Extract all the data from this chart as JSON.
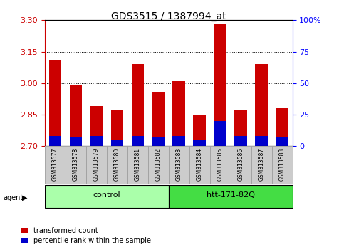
{
  "title": "GDS3515 / 1387994_at",
  "samples": [
    "GSM313577",
    "GSM313578",
    "GSM313579",
    "GSM313580",
    "GSM313581",
    "GSM313582",
    "GSM313583",
    "GSM313584",
    "GSM313585",
    "GSM313586",
    "GSM313587",
    "GSM313588"
  ],
  "transformed_count": [
    3.11,
    2.99,
    2.89,
    2.87,
    3.09,
    2.96,
    3.01,
    2.85,
    3.28,
    2.87,
    3.09,
    2.88
  ],
  "percentile_rank": [
    8,
    7,
    8,
    5,
    8,
    7,
    8,
    5,
    20,
    8,
    8,
    7
  ],
  "y_min": 2.7,
  "y_max": 3.3,
  "y_ticks_left": [
    2.7,
    2.85,
    3.0,
    3.15,
    3.3
  ],
  "y_ticks_right": [
    0,
    25,
    50,
    75,
    100
  ],
  "bar_color": "#cc0000",
  "blue_color": "#0000cc",
  "bar_width": 0.6,
  "groups": [
    {
      "label": "control",
      "start": 0,
      "end": 6,
      "color": "#aaffaa"
    },
    {
      "label": "htt-171-82Q",
      "start": 6,
      "end": 12,
      "color": "#44dd44"
    }
  ],
  "legend_items": [
    {
      "color": "#cc0000",
      "label": "transformed count"
    },
    {
      "color": "#0000cc",
      "label": "percentile rank within the sample"
    }
  ],
  "tick_color_left": "#cc0000",
  "tick_color_right": "#0000ff",
  "grid_color": "#000000"
}
